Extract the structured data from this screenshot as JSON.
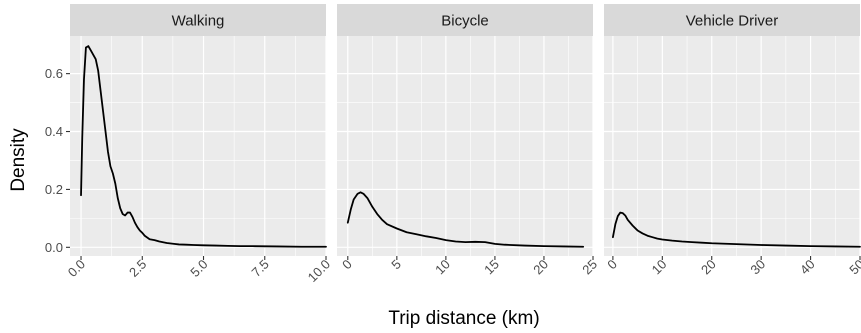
{
  "chart_data": {
    "type": "line",
    "subtype": "density-facets",
    "xlabel": "Trip distance (km)",
    "ylabel": "Density",
    "shared_y": true,
    "ylim": [
      -0.03,
      0.73
    ],
    "y_ticks": [
      0.0,
      0.2,
      0.4,
      0.6
    ],
    "y_tick_labels": [
      "0.0",
      "0.2",
      "0.4",
      "0.6"
    ],
    "grid": true,
    "panel_background": "#ebebeb",
    "strip_background": "#d9d9d9",
    "line_color": "#000000",
    "panels": [
      {
        "title": "Walking",
        "xlim": [
          -0.45,
          10.0
        ],
        "x_ticks": [
          0,
          2.5,
          5,
          7.5,
          10
        ],
        "x_tick_labels": [
          "0.0",
          "2.5",
          "5.0",
          "7.5",
          "10.0"
        ],
        "series": [
          {
            "x": [
              0,
              0.05,
              0.12,
              0.2,
              0.3,
              0.4,
              0.5,
              0.6,
              0.7,
              0.8,
              0.9,
              1.0,
              1.1,
              1.2,
              1.3,
              1.4,
              1.5,
              1.6,
              1.7,
              1.8,
              1.9,
              2.0,
              2.1,
              2.2,
              2.3,
              2.4,
              2.5,
              2.6,
              2.8,
              3.0,
              3.2,
              3.5,
              3.8,
              4.0,
              4.3,
              4.6,
              5.0,
              5.5,
              6.0,
              6.5,
              7.0,
              8.0,
              9.0,
              10.0
            ],
            "y": [
              0.18,
              0.38,
              0.58,
              0.69,
              0.695,
              0.68,
              0.665,
              0.65,
              0.61,
              0.54,
              0.47,
              0.4,
              0.33,
              0.28,
              0.255,
              0.22,
              0.17,
              0.135,
              0.115,
              0.11,
              0.12,
              0.12,
              0.105,
              0.085,
              0.07,
              0.058,
              0.05,
              0.04,
              0.028,
              0.025,
              0.02,
              0.015,
              0.012,
              0.01,
              0.009,
              0.008,
              0.007,
              0.006,
              0.005,
              0.004,
              0.004,
              0.003,
              0.002,
              0.002
            ]
          }
        ]
      },
      {
        "title": "Bicycle",
        "xlim": [
          -1.1,
          25.0
        ],
        "x_ticks": [
          0,
          5,
          10,
          15,
          20,
          25
        ],
        "x_tick_labels": [
          "0",
          "5",
          "10",
          "15",
          "20",
          "25"
        ],
        "series": [
          {
            "x": [
              0,
              0.3,
              0.6,
              1.0,
              1.3,
              1.6,
              2.0,
              2.5,
              3.0,
              3.5,
              4.0,
              5.0,
              6.0,
              7.0,
              8.0,
              9.0,
              10.0,
              11.0,
              12.0,
              13.0,
              14.0,
              15.0,
              16.0,
              18.0,
              20.0,
              22.0,
              24.0
            ],
            "y": [
              0.085,
              0.13,
              0.165,
              0.185,
              0.19,
              0.185,
              0.17,
              0.14,
              0.115,
              0.095,
              0.08,
              0.065,
              0.052,
              0.045,
              0.038,
              0.032,
              0.025,
              0.02,
              0.018,
              0.019,
              0.018,
              0.012,
              0.009,
              0.006,
              0.004,
              0.003,
              0.002
            ]
          }
        ]
      },
      {
        "title": "Vehicle Driver",
        "xlim": [
          -1.8,
          50.0
        ],
        "x_ticks": [
          0,
          10,
          20,
          30,
          40,
          50
        ],
        "x_tick_labels": [
          "0",
          "10",
          "20",
          "30",
          "40",
          "50"
        ],
        "series": [
          {
            "x": [
              0,
              0.5,
              1.0,
              1.5,
              2.0,
              2.5,
              3.0,
              4.0,
              5.0,
              6.0,
              7.0,
              8.0,
              9.0,
              10.0,
              12.0,
              14.0,
              16.0,
              18.0,
              20.0,
              25.0,
              30.0,
              35.0,
              40.0,
              45.0,
              50.0
            ],
            "y": [
              0.035,
              0.08,
              0.108,
              0.12,
              0.118,
              0.11,
              0.095,
              0.075,
              0.058,
              0.048,
              0.04,
              0.035,
              0.03,
              0.027,
              0.023,
              0.02,
              0.018,
              0.016,
              0.014,
              0.011,
              0.008,
              0.006,
              0.004,
              0.003,
              0.002
            ]
          }
        ]
      }
    ]
  }
}
